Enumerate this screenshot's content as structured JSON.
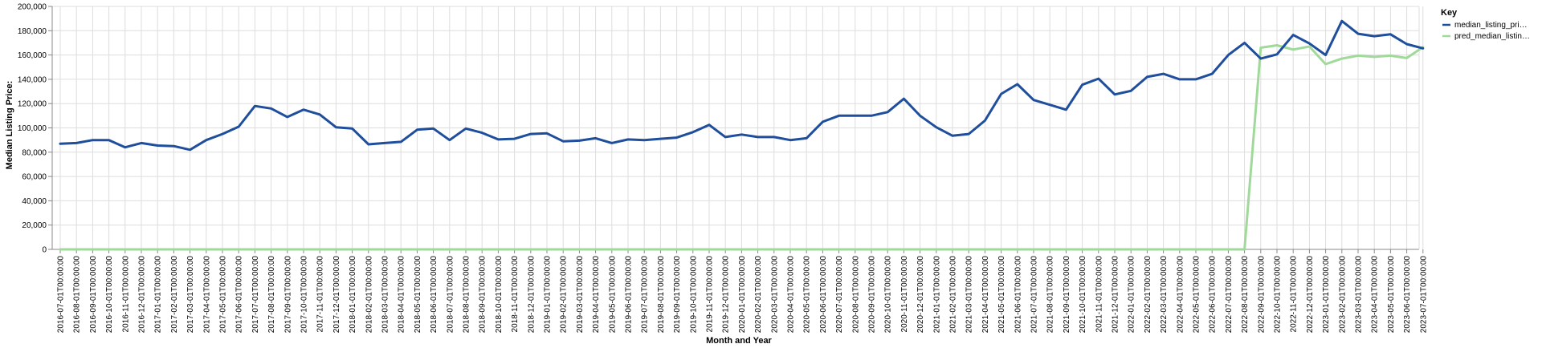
{
  "chart_data": {
    "type": "line",
    "xlabel": "Month and Year",
    "ylabel": "Median Listing Price:",
    "ylim": [
      0,
      200000
    ],
    "yticks": [
      "0",
      "20,000",
      "40,000",
      "60,000",
      "80,000",
      "100,000",
      "120,000",
      "140,000",
      "160,000",
      "180,000",
      "200,000"
    ],
    "grid": true,
    "legend": {
      "title": "Key",
      "position": "top-right",
      "entries": [
        "median_listing_pri…",
        "pred_median_listin…"
      ]
    },
    "categories": [
      "2016-07-01T00:00:00",
      "2016-08-01T00:00:00",
      "2016-09-01T00:00:00",
      "2016-10-01T00:00:00",
      "2016-11-01T00:00:00",
      "2016-12-01T00:00:00",
      "2017-01-01T00:00:00",
      "2017-02-01T00:00:00",
      "2017-03-01T00:00:00",
      "2017-04-01T00:00:00",
      "2017-05-01T00:00:00",
      "2017-06-01T00:00:00",
      "2017-07-01T00:00:00",
      "2017-08-01T00:00:00",
      "2017-09-01T00:00:00",
      "2017-10-01T00:00:00",
      "2017-11-01T00:00:00",
      "2017-12-01T00:00:00",
      "2018-01-01T00:00:00",
      "2018-02-01T00:00:00",
      "2018-03-01T00:00:00",
      "2018-04-01T00:00:00",
      "2018-05-01T00:00:00",
      "2018-06-01T00:00:00",
      "2018-07-01T00:00:00",
      "2018-08-01T00:00:00",
      "2018-09-01T00:00:00",
      "2018-10-01T00:00:00",
      "2018-11-01T00:00:00",
      "2018-12-01T00:00:00",
      "2019-01-01T00:00:00",
      "2019-02-01T00:00:00",
      "2019-03-01T00:00:00",
      "2019-04-01T00:00:00",
      "2019-05-01T00:00:00",
      "2019-06-01T00:00:00",
      "2019-07-01T00:00:00",
      "2019-08-01T00:00:00",
      "2019-09-01T00:00:00",
      "2019-10-01T00:00:00",
      "2019-11-01T00:00:00",
      "2019-12-01T00:00:00",
      "2020-01-01T00:00:00",
      "2020-02-01T00:00:00",
      "2020-03-01T00:00:00",
      "2020-04-01T00:00:00",
      "2020-05-01T00:00:00",
      "2020-06-01T00:00:00",
      "2020-07-01T00:00:00",
      "2020-08-01T00:00:00",
      "2020-09-01T00:00:00",
      "2020-10-01T00:00:00",
      "2020-11-01T00:00:00",
      "2020-12-01T00:00:00",
      "2021-01-01T00:00:00",
      "2021-02-01T00:00:00",
      "2021-03-01T00:00:00",
      "2021-04-01T00:00:00",
      "2021-05-01T00:00:00",
      "2021-06-01T00:00:00",
      "2021-07-01T00:00:00",
      "2021-08-01T00:00:00",
      "2021-09-01T00:00:00",
      "2021-10-01T00:00:00",
      "2021-11-01T00:00:00",
      "2021-12-01T00:00:00",
      "2022-01-01T00:00:00",
      "2022-02-01T00:00:00",
      "2022-03-01T00:00:00",
      "2022-04-01T00:00:00",
      "2022-05-01T00:00:00",
      "2022-06-01T00:00:00",
      "2022-07-01T00:00:00",
      "2022-08-01T00:00:00",
      "2022-09-01T00:00:00",
      "2022-10-01T00:00:00",
      "2022-11-01T00:00:00",
      "2022-12-01T00:00:00",
      "2023-01-01T00:00:00",
      "2023-02-01T00:00:00",
      "2023-03-01T00:00:00",
      "2023-04-01T00:00:00",
      "2023-05-01T00:00:00",
      "2023-06-01T00:00:00",
      "2023-07-01T00:00:00"
    ],
    "series": [
      {
        "name": "median_listing_pri…",
        "color": "#1f4e9c",
        "values": [
          87000,
          87500,
          90000,
          90000,
          84000,
          87500,
          85500,
          85000,
          82000,
          90000,
          95000,
          101000,
          118000,
          116000,
          109000,
          115000,
          111000,
          100500,
          99500,
          86500,
          87500,
          88500,
          98500,
          99500,
          90000,
          99500,
          96000,
          90500,
          91000,
          95000,
          95500,
          89000,
          89500,
          91500,
          87500,
          90500,
          90000,
          91000,
          92000,
          96500,
          102500,
          92500,
          94500,
          92500,
          92500,
          90000,
          91500,
          105000,
          110000,
          110000,
          110000,
          113000,
          124000,
          110000,
          100500,
          93500,
          95000,
          106000,
          128000,
          136000,
          123000,
          119000,
          115000,
          135500,
          140500,
          127500,
          130500,
          142000,
          144500,
          140000,
          140000,
          144500,
          160000,
          170000,
          157000,
          160500,
          176500,
          169500,
          160000,
          188000,
          177500,
          175500,
          177000,
          169000,
          165500
        ]
      },
      {
        "name": "pred_median_listin…",
        "color": "#a1d99b",
        "values": [
          0,
          0,
          0,
          0,
          0,
          0,
          0,
          0,
          0,
          0,
          0,
          0,
          0,
          0,
          0,
          0,
          0,
          0,
          0,
          0,
          0,
          0,
          0,
          0,
          0,
          0,
          0,
          0,
          0,
          0,
          0,
          0,
          0,
          0,
          0,
          0,
          0,
          0,
          0,
          0,
          0,
          0,
          0,
          0,
          0,
          0,
          0,
          0,
          0,
          0,
          0,
          0,
          0,
          0,
          0,
          0,
          0,
          0,
          0,
          0,
          0,
          0,
          0,
          0,
          0,
          0,
          0,
          0,
          0,
          0,
          0,
          0,
          0,
          0,
          166000,
          168000,
          164500,
          167000,
          152500,
          157000,
          159500,
          158500,
          159500,
          157500,
          166500
        ]
      }
    ]
  }
}
